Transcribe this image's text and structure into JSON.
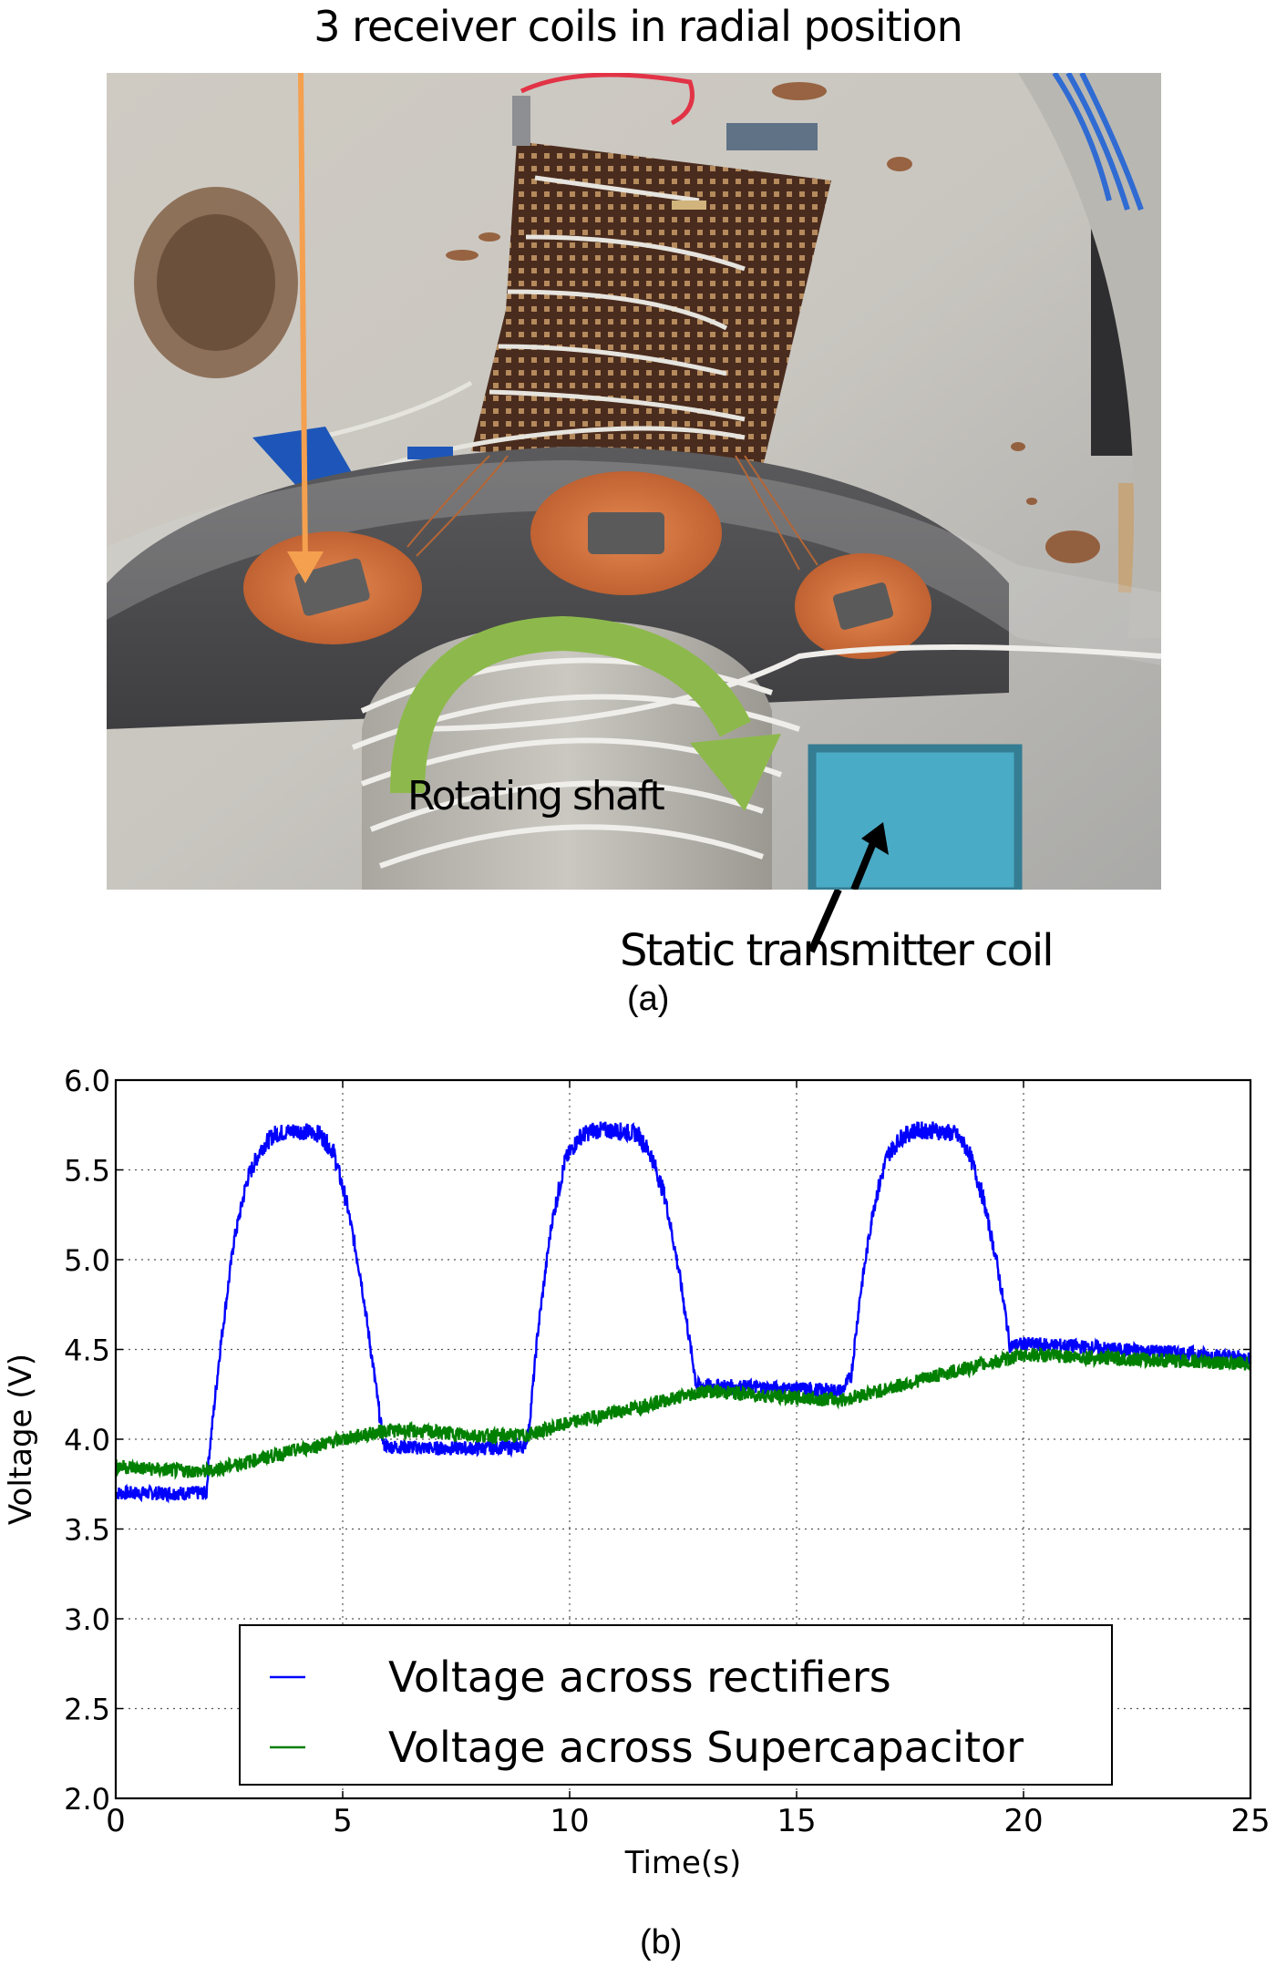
{
  "figure": {
    "panel_a": {
      "caption": "(a)",
      "title_annotation": "3 receiver coils in radial position",
      "shaft_annotation": "Rotating shaft",
      "transmitter_annotation": "Static transmitter coil",
      "colors": {
        "orange_arrow": "#f4a04f",
        "green_arrow": "#8db94c",
        "transmitter_box_fill": "#4aabc6",
        "transmitter_box_border": "#357d93"
      }
    },
    "panel_b": {
      "caption": "(b)"
    }
  },
  "chart_data": {
    "type": "line",
    "title": "",
    "xlabel": "Time(s)",
    "ylabel": "Voltage (V)",
    "xlim": [
      0,
      25
    ],
    "ylim": [
      2.0,
      6.0
    ],
    "xticks": [
      "0",
      "5",
      "10",
      "15",
      "20",
      "25"
    ],
    "yticks": [
      "2.0",
      "2.5",
      "3.0",
      "3.5",
      "4.0",
      "4.5",
      "5.0",
      "5.5",
      "6.0"
    ],
    "grid": true,
    "legend_position": "lower center",
    "series": [
      {
        "name": "Voltage across rectifiers",
        "color": "#0000ff",
        "x": [
          0,
          1.0,
          2.0,
          2.05,
          2.3,
          2.6,
          2.9,
          3.2,
          3.5,
          4.0,
          4.5,
          4.8,
          5.1,
          5.4,
          5.7,
          5.9,
          6.0,
          7.0,
          8.0,
          9.0,
          9.1,
          9.3,
          9.6,
          9.9,
          10.2,
          10.5,
          11.0,
          11.5,
          11.8,
          12.1,
          12.4,
          12.7,
          12.8,
          13.0,
          14.0,
          15.0,
          16.0,
          16.2,
          16.4,
          16.7,
          17.0,
          17.3,
          17.6,
          18.0,
          18.5,
          18.8,
          19.1,
          19.4,
          19.6,
          19.7,
          20.0,
          21.0,
          22.0,
          23.0,
          24.0,
          25.0
        ],
        "y": [
          3.7,
          3.7,
          3.7,
          3.9,
          4.5,
          5.1,
          5.45,
          5.62,
          5.7,
          5.72,
          5.7,
          5.6,
          5.3,
          4.9,
          4.35,
          3.97,
          3.96,
          3.95,
          3.95,
          3.96,
          4.05,
          4.6,
          5.2,
          5.55,
          5.68,
          5.72,
          5.72,
          5.7,
          5.58,
          5.35,
          4.95,
          4.45,
          4.3,
          4.3,
          4.29,
          4.28,
          4.27,
          4.35,
          4.8,
          5.3,
          5.58,
          5.68,
          5.72,
          5.72,
          5.7,
          5.6,
          5.35,
          5.0,
          4.7,
          4.52,
          4.53,
          4.52,
          4.5,
          4.49,
          4.47,
          4.45
        ]
      },
      {
        "name": "Voltage across Supercapacitor",
        "color": "#008000",
        "x": [
          0,
          1,
          2,
          3,
          4,
          5,
          6,
          7,
          8,
          9,
          10,
          11,
          12,
          13,
          14,
          15,
          16,
          17,
          18,
          19,
          20,
          21,
          22,
          23,
          24,
          25
        ],
        "y": [
          3.85,
          3.83,
          3.82,
          3.88,
          3.94,
          4.0,
          4.05,
          4.04,
          4.02,
          4.02,
          4.09,
          4.15,
          4.21,
          4.27,
          4.25,
          4.23,
          4.22,
          4.28,
          4.35,
          4.41,
          4.47,
          4.46,
          4.45,
          4.44,
          4.43,
          4.42
        ]
      }
    ],
    "legend": [
      "Voltage across rectifiers",
      "Voltage across Supercapacitor"
    ]
  }
}
